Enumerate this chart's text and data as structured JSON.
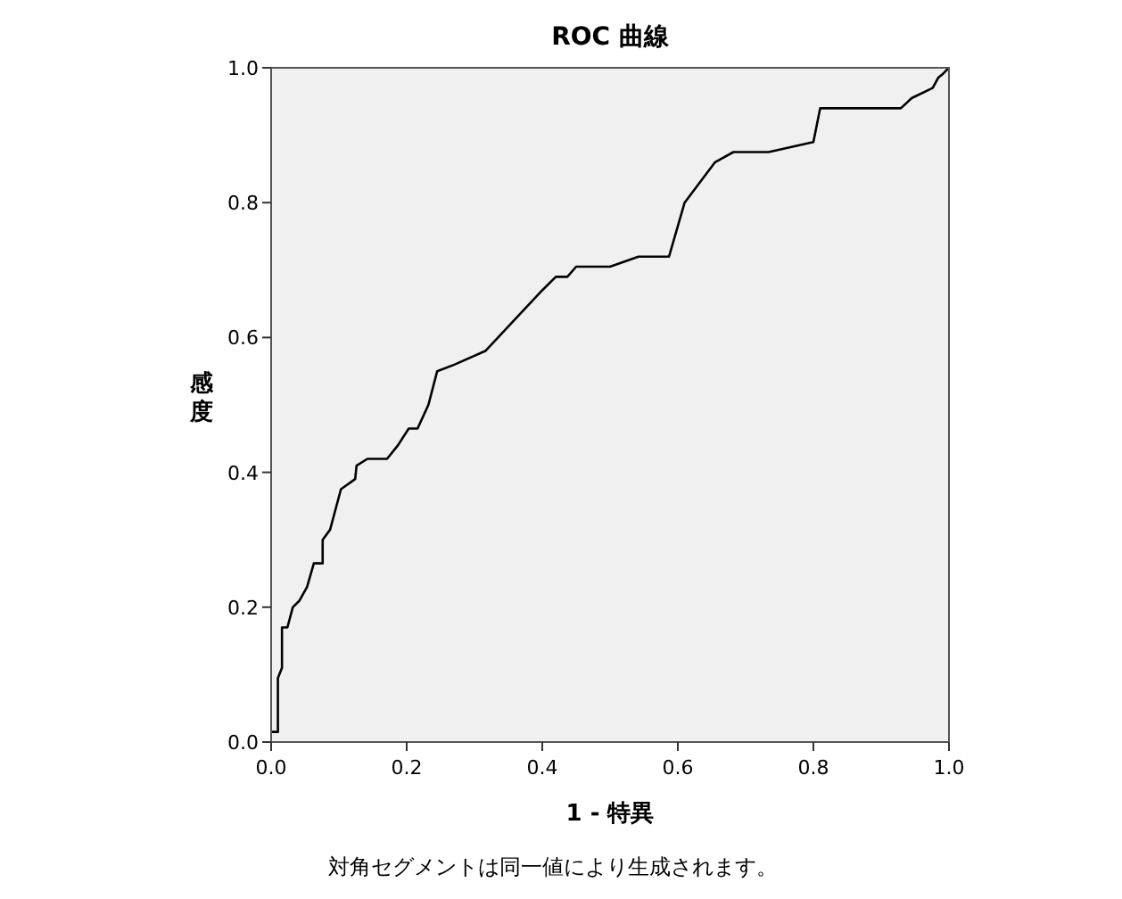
{
  "chart_data": {
    "type": "line",
    "title": "ROC 曲線",
    "xlabel": "1 - 特異",
    "ylabel": "感度",
    "annotations": [
      "対角セグメントは同一値により生成されます。"
    ],
    "xlim": [
      0.0,
      1.0
    ],
    "ylim": [
      0.0,
      1.0
    ],
    "xticks": [
      {
        "value": 0,
        "label": "0.0"
      },
      {
        "value": 0.2,
        "label": "0.2"
      },
      {
        "value": 0.4,
        "label": "0.4"
      },
      {
        "value": 0.6,
        "label": "0.6"
      },
      {
        "value": 0.8,
        "label": "0.8"
      },
      {
        "value": 1,
        "label": "1.0"
      }
    ],
    "yticks": [
      {
        "value": 0,
        "label": "0.0"
      },
      {
        "value": 0.2,
        "label": "0.2"
      },
      {
        "value": 0.4,
        "label": "0.4"
      },
      {
        "value": 0.6,
        "label": "0.6"
      },
      {
        "value": 0.8,
        "label": "0.8"
      },
      {
        "value": 1,
        "label": "1.0"
      }
    ],
    "series": [
      {
        "color": "#000000",
        "x": [
          0,
          0.01,
          0.01,
          0.016,
          0.016,
          0.024,
          0.032,
          0.042,
          0.053,
          0.063,
          0.076,
          0.076,
          0.087,
          0.103,
          0.124,
          0.126,
          0.142,
          0.171,
          0.187,
          0.203,
          0.216,
          0.232,
          0.245,
          0.271,
          0.316,
          0.4,
          0.42,
          0.437,
          0.45,
          0.5,
          0.542,
          0.587,
          0.61,
          0.655,
          0.682,
          0.734,
          0.8,
          0.81,
          0.929,
          0.945,
          0.976,
          0.984,
          0.99,
          1
        ],
        "values": [
          0.015,
          0.015,
          0.095,
          0.11,
          0.17,
          0.17,
          0.2,
          0.21,
          0.23,
          0.265,
          0.265,
          0.3,
          0.315,
          0.375,
          0.39,
          0.41,
          0.42,
          0.42,
          0.44,
          0.465,
          0.465,
          0.5,
          0.55,
          0.56,
          0.58,
          0.67,
          0.69,
          0.69,
          0.705,
          0.705,
          0.72,
          0.72,
          0.8,
          0.86,
          0.875,
          0.875,
          0.89,
          0.94,
          0.94,
          0.955,
          0.97,
          0.985,
          0.99,
          1
        ]
      }
    ]
  }
}
